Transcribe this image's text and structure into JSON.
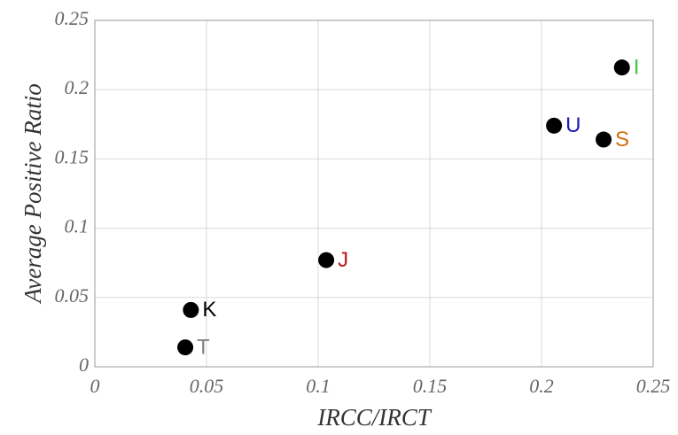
{
  "chart_data": {
    "type": "scatter",
    "xlabel": "IRCC/IRCT",
    "ylabel": "Average Positive Ratio",
    "x": [
      0.0405,
      0.043,
      0.1036,
      0.2056,
      0.2278,
      0.236
    ],
    "values": [
      0.014,
      0.041,
      0.077,
      0.174,
      0.164,
      0.216
    ],
    "labels": [
      "T",
      "K",
      "J",
      "U",
      "S",
      "I"
    ],
    "label_colors": [
      "#808080",
      "#000000",
      "#c0141c",
      "#1a1ab4",
      "#d0700f",
      "#3cc83c"
    ],
    "color": "#000000",
    "xlim": [
      0,
      0.25
    ],
    "ylim": [
      0,
      0.25
    ],
    "xticks": [
      0,
      0.05,
      0.1,
      0.15,
      0.2,
      0.25
    ],
    "yticks": [
      0,
      0.05,
      0.1,
      0.15,
      0.2,
      0.25
    ],
    "grid": true
  }
}
